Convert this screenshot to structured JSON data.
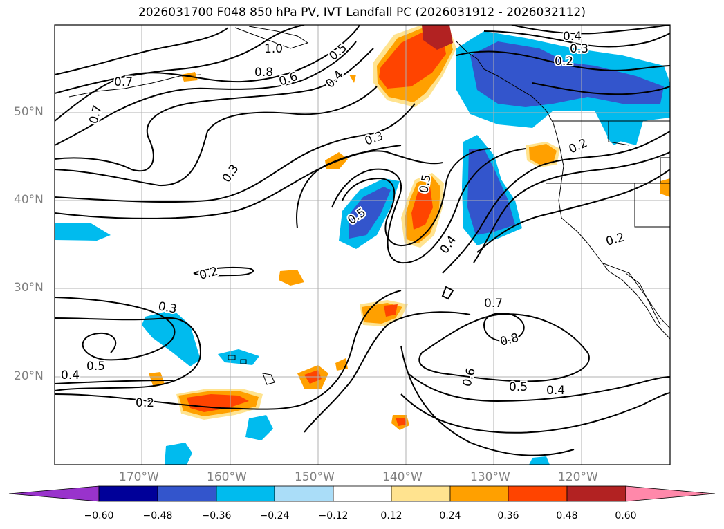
{
  "title": "2026031700 F048 850 hPa PV, IVT Landfall PC (2026031912 - 2026032112)",
  "map": {
    "lat_labels": [
      "50°N",
      "40°N",
      "30°N",
      "20°N"
    ],
    "lon_labels": [
      "170°W",
      "160°W",
      "150°W",
      "140°W",
      "130°W",
      "120°W"
    ],
    "contour_labels": [
      "0.7",
      "0.7",
      "0.8",
      "1.0",
      "0.6",
      "0.5",
      "0.4",
      "0.4",
      "0.3",
      "0.2",
      "0.3",
      "0.5",
      "0.3",
      "0.2",
      "0.5",
      "0.4",
      "0.2",
      "0.2",
      "0.3",
      "0.5",
      "0.4",
      "0.7",
      "0.8",
      "0.6",
      "0.5",
      "0.4",
      "0.2"
    ],
    "grid": true
  },
  "colorbar": {
    "ticks": [
      "−0.60",
      "−0.48",
      "−0.36",
      "−0.24",
      "−0.12",
      "0.12",
      "0.24",
      "0.36",
      "0.48",
      "0.60"
    ],
    "colors": [
      "#9933cc",
      "#000099",
      "#3355cc",
      "#00bbee",
      "#aaddf8",
      "#ffffff",
      "#ffe38f",
      "#ffa000",
      "#ff4400",
      "#b22222",
      "#ff88aa"
    ],
    "extend": "both"
  }
}
